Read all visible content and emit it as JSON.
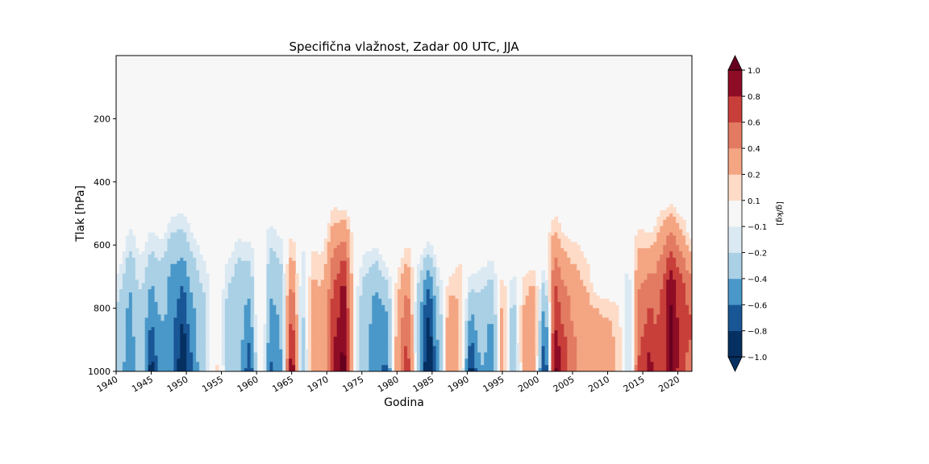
{
  "chart_data": {
    "type": "heatmap",
    "title": "Specifična vlažnost, Zadar 00 UTC, JJA",
    "xlabel": "Godina",
    "ylabel": "Tlak [hPa]",
    "xlim": [
      1940,
      2022
    ],
    "ylim": [
      1000,
      0
    ],
    "x_ticks": [
      1940,
      1945,
      1950,
      1955,
      1960,
      1965,
      1970,
      1975,
      1980,
      1985,
      1990,
      1995,
      2000,
      2005,
      2010,
      2015,
      2020
    ],
    "y_ticks": [
      200,
      400,
      600,
      800,
      1000
    ],
    "grid": false,
    "colorbar": {
      "label": "[g/kg]",
      "levels": [
        -1.0,
        -0.8,
        -0.6,
        -0.4,
        -0.2,
        -0.1,
        0.1,
        0.2,
        0.4,
        0.6,
        0.8,
        1.0
      ],
      "tick_labels": [
        "−1.0",
        "−0.8",
        "−0.6",
        "−0.4",
        "−0.2",
        "−0.1",
        "0.1",
        "0.2",
        "0.4",
        "0.6",
        "0.8",
        "1.0"
      ],
      "colors": [
        "#053061",
        "#195696",
        "#4a98c9",
        "#a9d0e5",
        "#dbe9f3",
        "#f7f7f7",
        "#fddbc7",
        "#f4a582",
        "#e27b62",
        "#c83f3a",
        "#8e0c25"
      ],
      "under_color": "#053061",
      "over_color": "#67001f",
      "extend": "both"
    },
    "anomaly_columns": {
      "description_units": "year, anomaly value at top of column (g/kg), value at surface (g/kg), column top pressure (hPa)",
      "columns": [
        {
          "year": 1940.5,
          "surface": -0.3,
          "top": 600,
          "mid": -0.15
        },
        {
          "year": 1942,
          "surface": -0.5,
          "top": 480,
          "mid": -0.25
        },
        {
          "year": 1943.5,
          "surface": -0.15,
          "top": 550,
          "mid": -0.12
        },
        {
          "year": 1945,
          "surface": -0.85,
          "top": 480,
          "mid": -0.2
        },
        {
          "year": 1946.5,
          "surface": -0.35,
          "top": 520,
          "mid": -0.2
        },
        {
          "year": 1948,
          "surface": -0.45,
          "top": 460,
          "mid": -0.35
        },
        {
          "year": 1949.5,
          "surface": -1.0,
          "top": 440,
          "mid": -0.3
        },
        {
          "year": 1951,
          "surface": -0.5,
          "top": 500,
          "mid": -0.2
        },
        {
          "year": 1952.5,
          "surface": -0.2,
          "top": 560,
          "mid": -0.15
        },
        {
          "year": 1954.5,
          "surface": 0.15,
          "top": 800,
          "mid": 0.0
        },
        {
          "year": 1956,
          "surface": -0.3,
          "top": 560,
          "mid": -0.15
        },
        {
          "year": 1957.5,
          "surface": -0.2,
          "top": 520,
          "mid": -0.25
        },
        {
          "year": 1959,
          "surface": -0.75,
          "top": 520,
          "mid": -0.2
        },
        {
          "year": 1960.5,
          "surface": 0.15,
          "top": 560,
          "mid": 0.15
        },
        {
          "year": 1962,
          "surface": -0.6,
          "top": 450,
          "mid": -0.2
        },
        {
          "year": 1963.5,
          "surface": -0.45,
          "top": 500,
          "mid": -0.2
        },
        {
          "year": 1965,
          "surface": 1.0,
          "top": 520,
          "mid": 0.3
        },
        {
          "year": 1966.5,
          "surface": -0.35,
          "top": 480,
          "mid": -0.15
        },
        {
          "year": 1968,
          "surface": 0.25,
          "top": 540,
          "mid": 0.2
        },
        {
          "year": 1969.5,
          "surface": 0.15,
          "top": 540,
          "mid": 0.15
        },
        {
          "year": 1971,
          "surface": 0.75,
          "top": 430,
          "mid": 0.35
        },
        {
          "year": 1972.5,
          "surface": 1.0,
          "top": 460,
          "mid": 0.55
        },
        {
          "year": 1974,
          "surface": -0.15,
          "top": 640,
          "mid": -0.1
        },
        {
          "year": 1975.5,
          "surface": -0.3,
          "top": 560,
          "mid": -0.2
        },
        {
          "year": 1977,
          "surface": -0.5,
          "top": 560,
          "mid": -0.3
        },
        {
          "year": 1978.5,
          "surface": -0.6,
          "top": 620,
          "mid": -0.25
        },
        {
          "year": 1980,
          "surface": 0.25,
          "top": 620,
          "mid": 0.15
        },
        {
          "year": 1981.5,
          "surface": 0.7,
          "top": 560,
          "mid": 0.3
        },
        {
          "year": 1983,
          "surface": -0.3,
          "top": 600,
          "mid": -0.2
        },
        {
          "year": 1984.5,
          "surface": -1.0,
          "top": 560,
          "mid": -0.45
        },
        {
          "year": 1986,
          "surface": -0.35,
          "top": 620,
          "mid": -0.15
        },
        {
          "year": 1987.5,
          "surface": 0.35,
          "top": 640,
          "mid": 0.2
        },
        {
          "year": 1989,
          "surface": 0.15,
          "top": 560,
          "mid": 0.15
        },
        {
          "year": 1990.5,
          "surface": -0.85,
          "top": 640,
          "mid": -0.2
        },
        {
          "year": 1992,
          "surface": -0.3,
          "top": 600,
          "mid": -0.15
        },
        {
          "year": 1993.5,
          "surface": -0.6,
          "top": 580,
          "mid": -0.2
        },
        {
          "year": 1995,
          "surface": 0.3,
          "top": 620,
          "mid": 0.2
        },
        {
          "year": 1996.5,
          "surface": -0.35,
          "top": 620,
          "mid": -0.2
        },
        {
          "year": 1998,
          "surface": 0.2,
          "top": 620,
          "mid": 0.15
        },
        {
          "year": 1999.5,
          "surface": 0.35,
          "top": 620,
          "mid": 0.25
        },
        {
          "year": 2001,
          "surface": -0.9,
          "top": 620,
          "mid": -0.3
        },
        {
          "year": 2002.5,
          "surface": 1.0,
          "top": 460,
          "mid": 0.35
        },
        {
          "year": 2004,
          "surface": 0.6,
          "top": 520,
          "mid": 0.25
        },
        {
          "year": 2005.5,
          "surface": 0.35,
          "top": 520,
          "mid": 0.2
        },
        {
          "year": 2007,
          "surface": 0.25,
          "top": 560,
          "mid": 0.15
        },
        {
          "year": 2008.5,
          "surface": 0.3,
          "top": 720,
          "mid": 0.2
        },
        {
          "year": 2010,
          "surface": 0.3,
          "top": 720,
          "mid": 0.15
        },
        {
          "year": 2011.5,
          "surface": 0.15,
          "top": 680,
          "mid": 0.1
        },
        {
          "year": 2013,
          "surface": -0.2,
          "top": 560,
          "mid": -0.15
        },
        {
          "year": 2014.5,
          "surface": 0.6,
          "top": 480,
          "mid": 0.25
        },
        {
          "year": 2016,
          "surface": 0.8,
          "top": 520,
          "mid": 0.3
        },
        {
          "year": 2017.5,
          "surface": 0.5,
          "top": 450,
          "mid": 0.35
        },
        {
          "year": 2019,
          "surface": 1.0,
          "top": 440,
          "mid": 0.6
        },
        {
          "year": 2020.5,
          "surface": 0.6,
          "top": 480,
          "mid": 0.45
        },
        {
          "year": 2022,
          "surface": 0.45,
          "top": 560,
          "mid": 0.4
        }
      ]
    }
  }
}
